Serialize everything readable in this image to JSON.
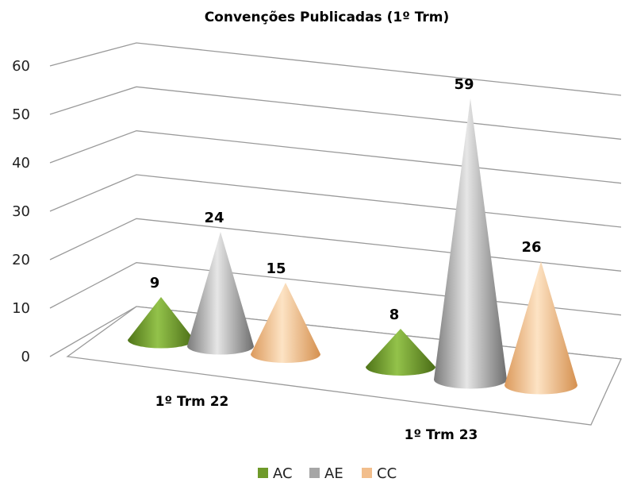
{
  "chart_data": {
    "type": "bar",
    "subtype": "3d-cone",
    "title": "Convenções Publicadas (1º Trm)",
    "categories": [
      "1º Trm 22",
      "1º Trm 23"
    ],
    "series": [
      {
        "name": "AC",
        "values": [
          9,
          8
        ],
        "color": "#6f9a2a"
      },
      {
        "name": "AE",
        "values": [
          24,
          59
        ],
        "color": "#a6a6a6"
      },
      {
        "name": "CC",
        "values": [
          15,
          26
        ],
        "color": "#f2be8c"
      }
    ],
    "ylim": [
      0,
      60
    ],
    "yticks": [
      0,
      10,
      20,
      30,
      40,
      50,
      60
    ],
    "grid": true,
    "legend": "bottom"
  }
}
